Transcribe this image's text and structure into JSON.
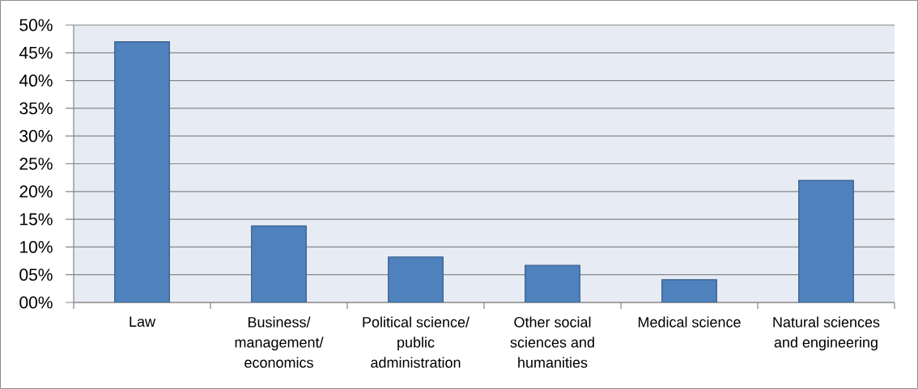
{
  "chart_data": {
    "type": "bar",
    "categories": [
      "Law",
      "Business/ management/ economics",
      "Political science/ public administration",
      "Other social sciences and humanities",
      "Medical science",
      "Natural sciences and engineering"
    ],
    "values": [
      47,
      13.8,
      8.2,
      6.7,
      4.1,
      22
    ],
    "color": "#4f81bd",
    "ylim": [
      0,
      50
    ],
    "yticks": [
      {
        "value": 0,
        "label": "00%"
      },
      {
        "value": 5,
        "label": "05%"
      },
      {
        "value": 10,
        "label": "10%"
      },
      {
        "value": 15,
        "label": "15%"
      },
      {
        "value": 20,
        "label": "20%"
      },
      {
        "value": 25,
        "label": "25%"
      },
      {
        "value": 30,
        "label": "30%"
      },
      {
        "value": 35,
        "label": "35%"
      },
      {
        "value": 40,
        "label": "40%"
      },
      {
        "value": 45,
        "label": "45%"
      },
      {
        "value": 50,
        "label": "50%"
      }
    ],
    "grid": "y"
  }
}
